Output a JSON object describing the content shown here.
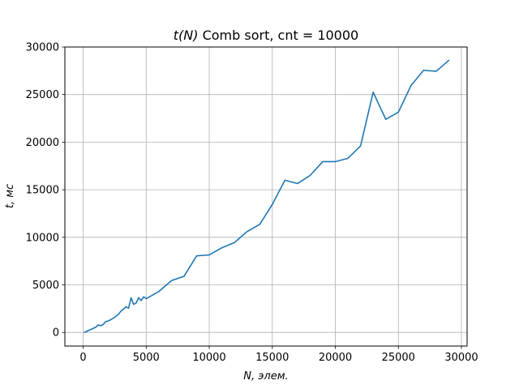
{
  "chart_data": {
    "type": "line",
    "title_prefix": "t(N)",
    "title_rest": " Comb sort, cnt = 10000",
    "xlabel_var": "N",
    "xlabel_rest": ", элем.",
    "ylabel_var": "t",
    "ylabel_rest": ", мс",
    "xlim": [
      -1450,
      30450
    ],
    "ylim": [
      -1430,
      30000
    ],
    "xticks": [
      0,
      5000,
      10000,
      15000,
      20000,
      25000,
      30000
    ],
    "yticks": [
      0,
      5000,
      10000,
      15000,
      20000,
      25000,
      30000
    ],
    "grid": true,
    "line_color": "#1f77b4",
    "x": [
      100,
      500,
      1000,
      1200,
      1400,
      1600,
      1800,
      2000,
      2200,
      2400,
      2600,
      2800,
      3000,
      3200,
      3400,
      3600,
      3800,
      4000,
      4200,
      4400,
      4600,
      4800,
      5000,
      6000,
      7000,
      8000,
      9000,
      10000,
      11000,
      12000,
      13000,
      14000,
      15000,
      16000,
      17000,
      18000,
      19000,
      20000,
      21000,
      22000,
      23000,
      24000,
      25000,
      26000,
      27000,
      28000,
      29000
    ],
    "y": [
      0,
      250,
      550,
      800,
      700,
      850,
      1150,
      1200,
      1350,
      1500,
      1700,
      1900,
      2250,
      2450,
      2700,
      2550,
      3650,
      2950,
      3100,
      3650,
      3350,
      3750,
      3550,
      4300,
      5450,
      5900,
      8050,
      8150,
      8900,
      9450,
      10600,
      11350,
      13450,
      16000,
      15650,
      16500,
      17950,
      17950,
      18300,
      19600,
      25250,
      22400,
      23150,
      25950,
      27550,
      27450,
      28600
    ]
  }
}
